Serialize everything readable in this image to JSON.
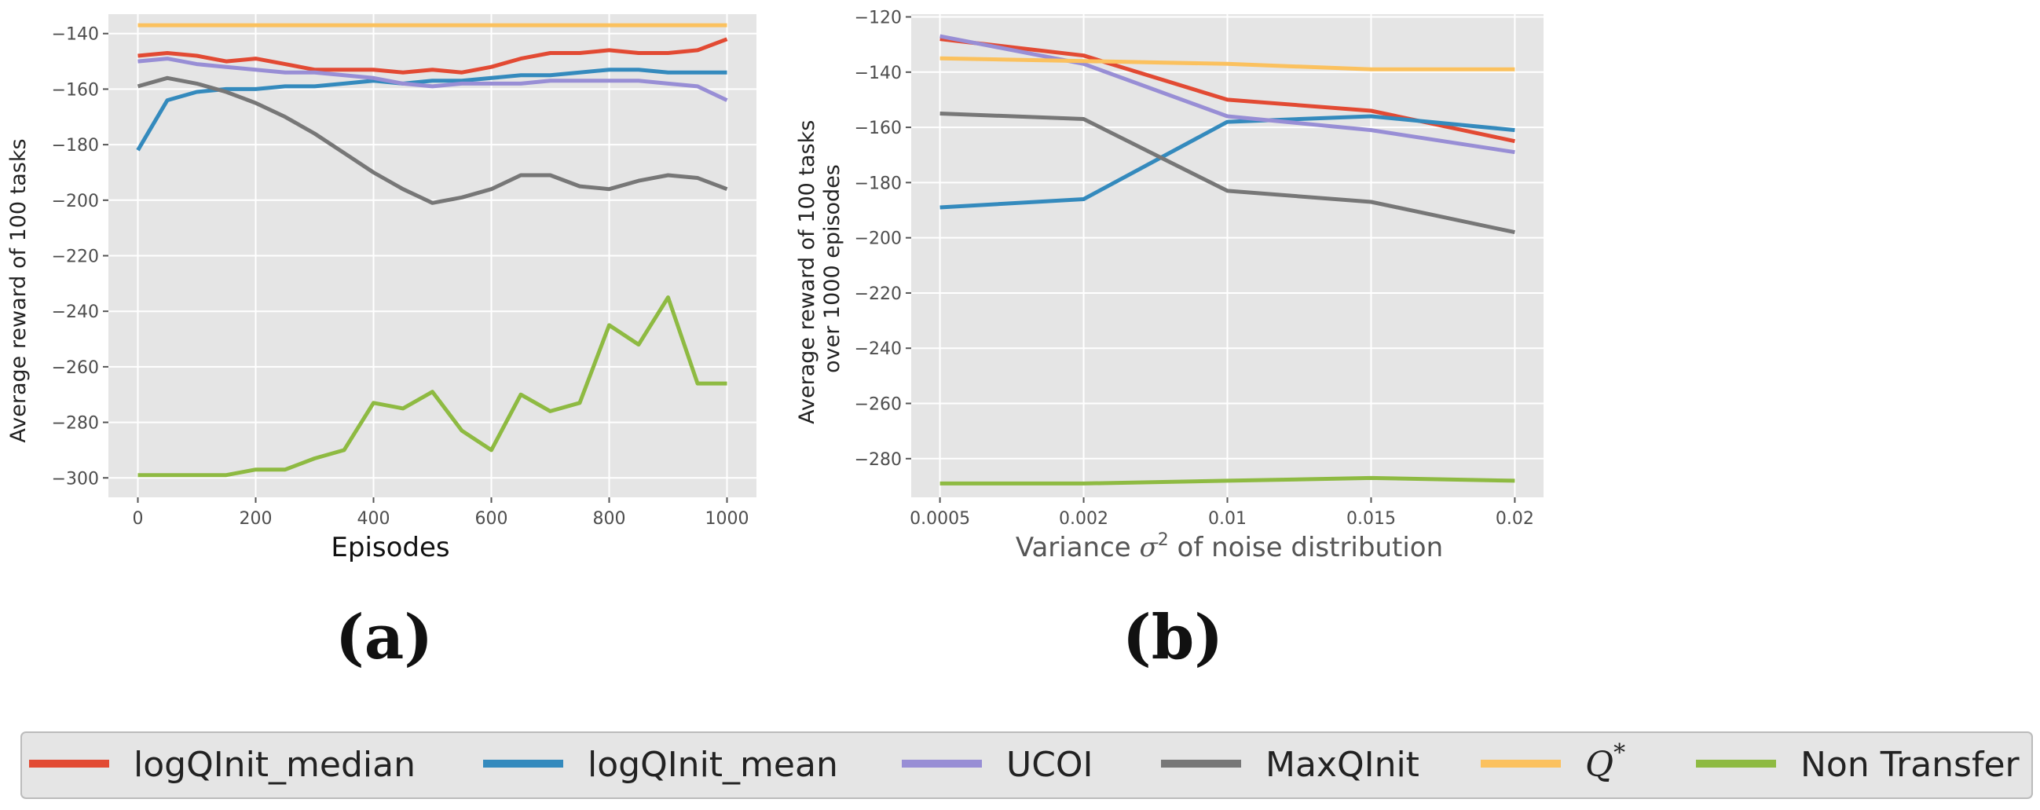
{
  "chart_data": [
    {
      "type": "line",
      "panel_label": "(a)",
      "xlabel": "Episodes",
      "ylabel": "Average reward of 100 tasks",
      "xlim": [
        -50,
        1050
      ],
      "ylim": [
        -307,
        -133
      ],
      "xticks": [
        0,
        200,
        400,
        600,
        800,
        1000
      ],
      "xtick_labels": [
        "0",
        "200",
        "400",
        "600",
        "800",
        "1000"
      ],
      "yticks": [
        -300,
        -280,
        -260,
        -240,
        -220,
        -200,
        -180,
        -160,
        -140
      ],
      "ytick_labels": [
        "−300",
        "−280",
        "−260",
        "−240",
        "−220",
        "−200",
        "−180",
        "−160",
        "−140"
      ],
      "grid": true,
      "x": [
        0,
        50,
        100,
        150,
        200,
        250,
        300,
        350,
        400,
        450,
        500,
        550,
        600,
        650,
        700,
        750,
        800,
        850,
        900,
        950,
        1000
      ],
      "series": [
        {
          "name": "logQInit_median",
          "color": "#E24A33",
          "values": [
            -148,
            -147,
            -148,
            -150,
            -149,
            -151,
            -153,
            -153,
            -153,
            -154,
            -153,
            -154,
            -152,
            -149,
            -147,
            -147,
            -146,
            -147,
            -147,
            -146,
            -142
          ]
        },
        {
          "name": "logQInit_mean",
          "color": "#348ABD",
          "values": [
            -182,
            -164,
            -161,
            -160,
            -160,
            -159,
            -159,
            -158,
            -157,
            -158,
            -157,
            -157,
            -156,
            -155,
            -155,
            -154,
            -153,
            -153,
            -154,
            -154,
            -154
          ]
        },
        {
          "name": "UCOI",
          "color": "#988ED5",
          "values": [
            -150,
            -149,
            -151,
            -152,
            -153,
            -154,
            -154,
            -155,
            -156,
            -158,
            -159,
            -158,
            -158,
            -158,
            -157,
            -157,
            -157,
            -157,
            -158,
            -159,
            -164
          ]
        },
        {
          "name": "MaxQInit",
          "color": "#777777",
          "values": [
            -159,
            -156,
            -158,
            -161,
            -165,
            -170,
            -176,
            -183,
            -190,
            -196,
            -201,
            -199,
            -196,
            -191,
            -191,
            -195,
            -196,
            -193,
            -191,
            -192,
            -196
          ]
        },
        {
          "name": "Q*",
          "color": "#FBC15E",
          "values": [
            -137,
            -137,
            -137,
            -137,
            -137,
            -137,
            -137,
            -137,
            -137,
            -137,
            -137,
            -137,
            -137,
            -137,
            -137,
            -137,
            -137,
            -137,
            -137,
            -137,
            -137
          ]
        },
        {
          "name": "Non Transfer",
          "color": "#8EBA42",
          "values": [
            -299,
            -299,
            -299,
            -299,
            -297,
            -297,
            -293,
            -290,
            -273,
            -275,
            -269,
            -283,
            -290,
            -270,
            -276,
            -273,
            -245,
            -252,
            -235,
            -266,
            -266
          ]
        }
      ]
    },
    {
      "type": "line",
      "panel_label": "(b)",
      "xlabel": "Variance σ² of noise distribution",
      "xlabel_parts": {
        "prefix": "Variance ",
        "symbol": "σ",
        "superscript": "2",
        "suffix": " of noise distribution"
      },
      "ylabel": "Average reward of 100 tasks over 1000 episodes",
      "ylabel_lines": [
        "Average reward of 100 tasks",
        "over 1000 episodes"
      ],
      "xlim": [
        -0.2,
        4.2
      ],
      "ylim": [
        -294,
        -119
      ],
      "categories": [
        "0.0005",
        "0.002",
        "0.01",
        "0.015",
        "0.02"
      ],
      "x": [
        0,
        1,
        2,
        3,
        4
      ],
      "yticks": [
        -280,
        -260,
        -240,
        -220,
        -200,
        -180,
        -160,
        -140,
        -120
      ],
      "ytick_labels": [
        "−280",
        "−260",
        "−240",
        "−220",
        "−200",
        "−180",
        "−160",
        "−140",
        "−120"
      ],
      "grid": true,
      "series": [
        {
          "name": "logQInit_median",
          "color": "#E24A33",
          "values": [
            -128,
            -134,
            -150,
            -154,
            -165
          ]
        },
        {
          "name": "logQInit_mean",
          "color": "#348ABD",
          "values": [
            -189,
            -186,
            -158,
            -156,
            -161
          ]
        },
        {
          "name": "UCOI",
          "color": "#988ED5",
          "values": [
            -127,
            -137,
            -156,
            -161,
            -169
          ]
        },
        {
          "name": "MaxQInit",
          "color": "#777777",
          "values": [
            -155,
            -157,
            -183,
            -187,
            -198
          ]
        },
        {
          "name": "Q*",
          "color": "#FBC15E",
          "values": [
            -135,
            -136,
            -137,
            -139,
            -139
          ]
        },
        {
          "name": "Non Transfer",
          "color": "#8EBA42",
          "values": [
            -289,
            -289,
            -288,
            -287,
            -288
          ]
        }
      ]
    }
  ],
  "legend": {
    "placement": "bottom",
    "entries": [
      {
        "label": "logQInit_median",
        "color": "#E24A33"
      },
      {
        "label": "logQInit_mean",
        "color": "#348ABD"
      },
      {
        "label": "UCOI",
        "color": "#988ED5"
      },
      {
        "label": "MaxQInit",
        "color": "#777777"
      },
      {
        "label": "Q",
        "sup": "*",
        "color": "#FBC15E",
        "italic": true
      },
      {
        "label": "Non Transfer",
        "color": "#8EBA42"
      }
    ]
  },
  "colors": {
    "panel_bg": "#E5E5E5",
    "grid": "#FFFFFF",
    "legend_bg": "#E5E5E5",
    "legend_border": "#BBBBBB"
  }
}
